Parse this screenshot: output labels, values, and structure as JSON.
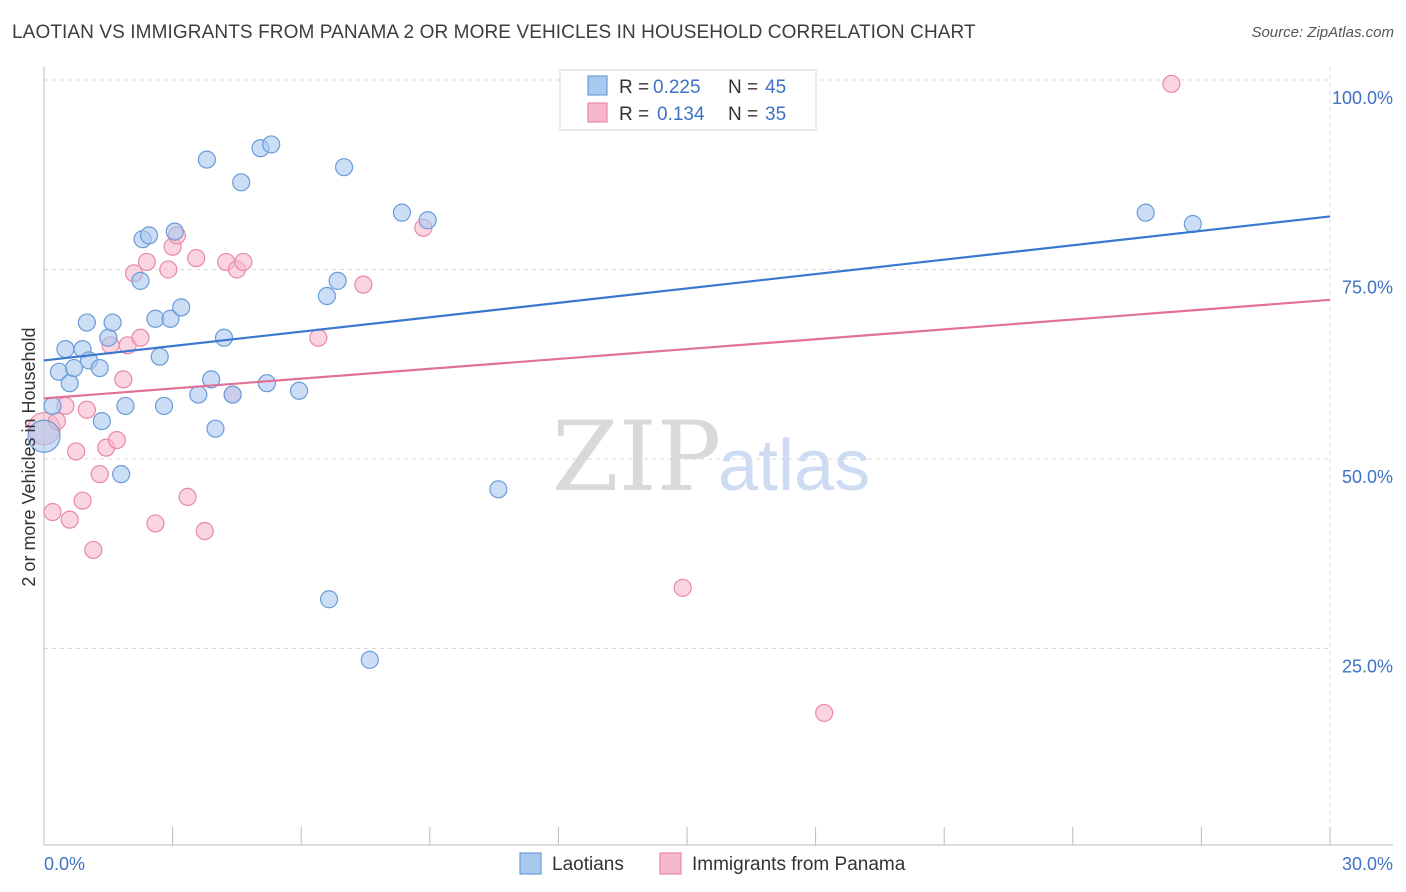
{
  "title": "LAOTIAN VS IMMIGRANTS FROM PANAMA 2 OR MORE VEHICLES IN HOUSEHOLD CORRELATION CHART",
  "source": "Source: ZipAtlas.com",
  "watermark": {
    "zip": "ZIP",
    "atlas": "atlas"
  },
  "colors": {
    "blue_fill": "#a9c8ee",
    "blue_stroke": "#6b9bd8",
    "blue_line": "#3a78cf",
    "pink_fill": "#f6b8cb",
    "pink_stroke": "#e88aa8",
    "pink_line": "#e07298",
    "grid": "#d8d8d8",
    "label": "#3f72c4"
  },
  "legend": {
    "rows": [
      {
        "r_label": "R =",
        "r_value": "0.225",
        "n_label": "N =",
        "n_value": "45"
      },
      {
        "r_label": "R =",
        "r_value": "0.134",
        "n_label": "N =",
        "n_value": "35"
      }
    ]
  },
  "chart_data": {
    "type": "scatter",
    "title": "LAOTIAN VS IMMIGRANTS FROM PANAMA 2 OR MORE VEHICLES IN HOUSEHOLD CORRELATION CHART",
    "xlabel": "",
    "ylabel": "2 or more Vehicles in Household",
    "xlim": [
      0,
      30
    ],
    "ylim": [
      0,
      100
    ],
    "x_tick_labels": [
      "0.0%",
      "30.0%"
    ],
    "y_ticks": [
      25,
      50,
      75,
      100
    ],
    "y_tick_labels": [
      "25.0%",
      "50.0%",
      "75.0%",
      "100.0%"
    ],
    "grid": true,
    "legend_position": "top-center",
    "series": [
      {
        "name": "Laotians",
        "color": "#a9c8ee",
        "trend": {
          "x": [
            0,
            30
          ],
          "y": [
            63.0,
            82.0
          ]
        },
        "points": [
          [
            0.0,
            53.0
          ],
          [
            0.2,
            57.0
          ],
          [
            0.35,
            61.5
          ],
          [
            0.5,
            64.5
          ],
          [
            0.6,
            60.0
          ],
          [
            0.7,
            62.0
          ],
          [
            0.9,
            64.5
          ],
          [
            1.0,
            68.0
          ],
          [
            1.05,
            63.0
          ],
          [
            1.3,
            62.0
          ],
          [
            1.35,
            55.0
          ],
          [
            1.5,
            66.0
          ],
          [
            1.6,
            68.0
          ],
          [
            1.8,
            48.0
          ],
          [
            1.9,
            57.0
          ],
          [
            2.25,
            73.5
          ],
          [
            2.3,
            79.0
          ],
          [
            2.45,
            79.5
          ],
          [
            2.6,
            68.5
          ],
          [
            2.7,
            63.5
          ],
          [
            2.8,
            57.0
          ],
          [
            2.95,
            68.5
          ],
          [
            3.05,
            80.0
          ],
          [
            3.2,
            70.0
          ],
          [
            3.6,
            58.5
          ],
          [
            3.8,
            89.5
          ],
          [
            3.9,
            60.5
          ],
          [
            4.0,
            54.0
          ],
          [
            4.2,
            66.0
          ],
          [
            4.4,
            58.5
          ],
          [
            4.6,
            86.5
          ],
          [
            5.05,
            91.0
          ],
          [
            5.3,
            91.5
          ],
          [
            5.2,
            60.0
          ],
          [
            5.95,
            59.0
          ],
          [
            6.6,
            71.5
          ],
          [
            6.65,
            31.5
          ],
          [
            6.85,
            73.5
          ],
          [
            7.0,
            88.5
          ],
          [
            7.6,
            23.5
          ],
          [
            8.35,
            82.5
          ],
          [
            8.95,
            81.5
          ],
          [
            10.6,
            46.0
          ],
          [
            25.7,
            82.5
          ],
          [
            26.8,
            81.0
          ]
        ]
      },
      {
        "name": "Immigrants from Panama",
        "color": "#f6b8cb",
        "trend": {
          "x": [
            0,
            30
          ],
          "y": [
            58.0,
            71.0
          ]
        },
        "points": [
          [
            0.0,
            54.0
          ],
          [
            0.2,
            43.0
          ],
          [
            0.3,
            55.0
          ],
          [
            0.5,
            57.0
          ],
          [
            0.6,
            42.0
          ],
          [
            0.75,
            51.0
          ],
          [
            0.9,
            44.5
          ],
          [
            1.0,
            56.5
          ],
          [
            1.15,
            38.0
          ],
          [
            1.3,
            48.0
          ],
          [
            1.45,
            51.5
          ],
          [
            1.55,
            65.0
          ],
          [
            1.7,
            52.5
          ],
          [
            1.85,
            60.5
          ],
          [
            1.95,
            65.0
          ],
          [
            2.1,
            74.5
          ],
          [
            2.25,
            66.0
          ],
          [
            2.4,
            76.0
          ],
          [
            2.6,
            41.5
          ],
          [
            2.9,
            75.0
          ],
          [
            3.0,
            78.0
          ],
          [
            3.1,
            79.5
          ],
          [
            3.35,
            45.0
          ],
          [
            3.55,
            76.5
          ],
          [
            3.75,
            40.5
          ],
          [
            4.25,
            76.0
          ],
          [
            4.4,
            58.5
          ],
          [
            4.5,
            75.0
          ],
          [
            4.65,
            76.0
          ],
          [
            6.4,
            66.0
          ],
          [
            7.45,
            73.0
          ],
          [
            8.85,
            80.5
          ],
          [
            14.9,
            33.0
          ],
          [
            18.2,
            16.5
          ],
          [
            26.3,
            99.5
          ]
        ]
      }
    ]
  }
}
